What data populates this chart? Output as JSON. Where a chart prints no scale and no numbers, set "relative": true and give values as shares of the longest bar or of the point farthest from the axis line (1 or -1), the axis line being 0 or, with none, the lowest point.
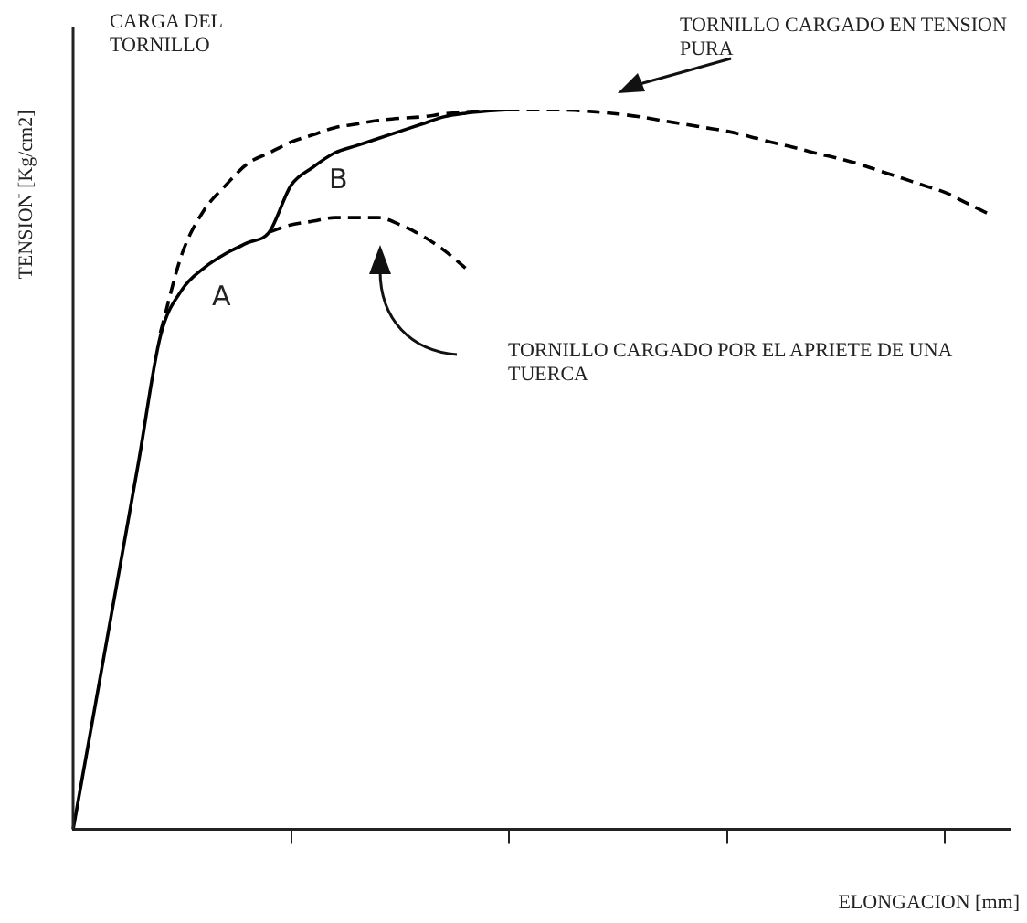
{
  "chart_data": {
    "type": "line",
    "relative": true,
    "xlabel": "ELONGACION [mm]",
    "ylabel": "TENSION [Kg/cm2]",
    "marker": "none",
    "annotations": [
      "CARGA DEL TORNILLO",
      "TORNILLO CARGADO EN TENSION PURA",
      "TORNILLO CARGADO POR EL APRIETE DE UNA TUERCA",
      "A",
      "B"
    ],
    "categories": [
      null,
      null,
      null,
      null,
      null,
      null,
      null,
      null,
      null,
      null,
      null,
      null,
      null,
      null,
      null,
      null,
      null,
      null,
      null,
      null,
      null,
      null,
      null,
      null,
      null,
      null,
      null,
      null,
      null,
      null,
      null,
      null,
      null,
      null,
      null,
      null,
      null,
      null,
      null,
      null,
      null,
      null,
      null,
      null
    ],
    "series": [
      {
        "color": "#000000",
        "line_style": "solid",
        "values": [
          0,
          0.17,
          0.34,
          0.51,
          0.685,
          0.75,
          0.78,
          0.8,
          0.815,
          0.83,
          0.895,
          0.92,
          0.94,
          0.95,
          0.96,
          0.97,
          0.98,
          0.99,
          0.995,
          0.998,
          1.0,
          null,
          null,
          null,
          null,
          null,
          null,
          null,
          null,
          null,
          null,
          null,
          null,
          null,
          null,
          null,
          null,
          null,
          null,
          null,
          null,
          null,
          null,
          null
        ]
      },
      {
        "color": "#000000",
        "line_style": "dashed",
        "values": [
          null,
          null,
          null,
          null,
          0.69,
          0.8,
          0.86,
          0.895,
          0.925,
          0.94,
          0.955,
          0.965,
          0.975,
          0.98,
          0.985,
          0.988,
          0.99,
          0.994,
          0.997,
          0.999,
          1.0,
          1.0,
          1.0,
          0.999,
          0.997,
          0.994,
          0.99,
          0.985,
          0.98,
          0.975,
          0.97,
          0.963,
          0.955,
          0.948,
          0.94,
          0.933,
          0.925,
          0.915,
          0.905,
          0.895,
          0.885,
          0.87,
          0.855,
          null
        ]
      },
      {
        "color": "#000000",
        "line_style": "dashed",
        "values": [
          null,
          null,
          null,
          null,
          null,
          null,
          null,
          null,
          null,
          0.83,
          0.84,
          0.845,
          0.85,
          0.85,
          0.85,
          0.84,
          0.825,
          0.805,
          0.78,
          null,
          null,
          null,
          null,
          null,
          null,
          null,
          null,
          null,
          null,
          null,
          null,
          null,
          null,
          null,
          null,
          null,
          null,
          null,
          null,
          null,
          null,
          null,
          null,
          null
        ]
      }
    ]
  }
}
